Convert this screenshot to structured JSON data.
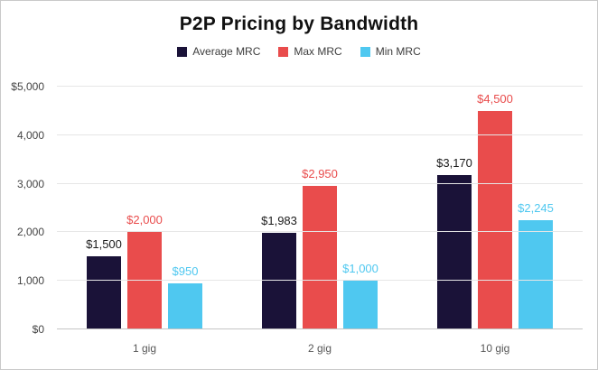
{
  "title": "P2P Pricing by Bandwidth",
  "chart_data": {
    "type": "bar",
    "title": "P2P Pricing by Bandwidth",
    "categories": [
      "1 gig",
      "2 gig",
      "10 gig"
    ],
    "series": [
      {
        "name": "Average MRC",
        "color": "#1a1238",
        "label_color": "#1c1c1c",
        "values": [
          1500,
          1983,
          3170
        ],
        "labels": [
          "$1,500",
          "$1,983",
          "$3,170"
        ]
      },
      {
        "name": "Max MRC",
        "color": "#e94c4c",
        "label_color": "#e94c4c",
        "values": [
          2000,
          2950,
          4500
        ],
        "labels": [
          "$2,000",
          "$2,950",
          "$4,500"
        ]
      },
      {
        "name": "Min MRC",
        "color": "#4fc8f0",
        "label_color": "#4fc8f0",
        "values": [
          950,
          1000,
          2245
        ],
        "labels": [
          "$950",
          "$1,000",
          "$2,245"
        ]
      }
    ],
    "ylim": [
      0,
      5000
    ],
    "ytick_values": [
      0,
      1000,
      2000,
      3000,
      4000,
      5000
    ],
    "ytick_labels": [
      "$0",
      "1,000",
      "2,000",
      "3,000",
      "4,000",
      "$5,000"
    ],
    "grid": true,
    "legend_position": "top"
  }
}
